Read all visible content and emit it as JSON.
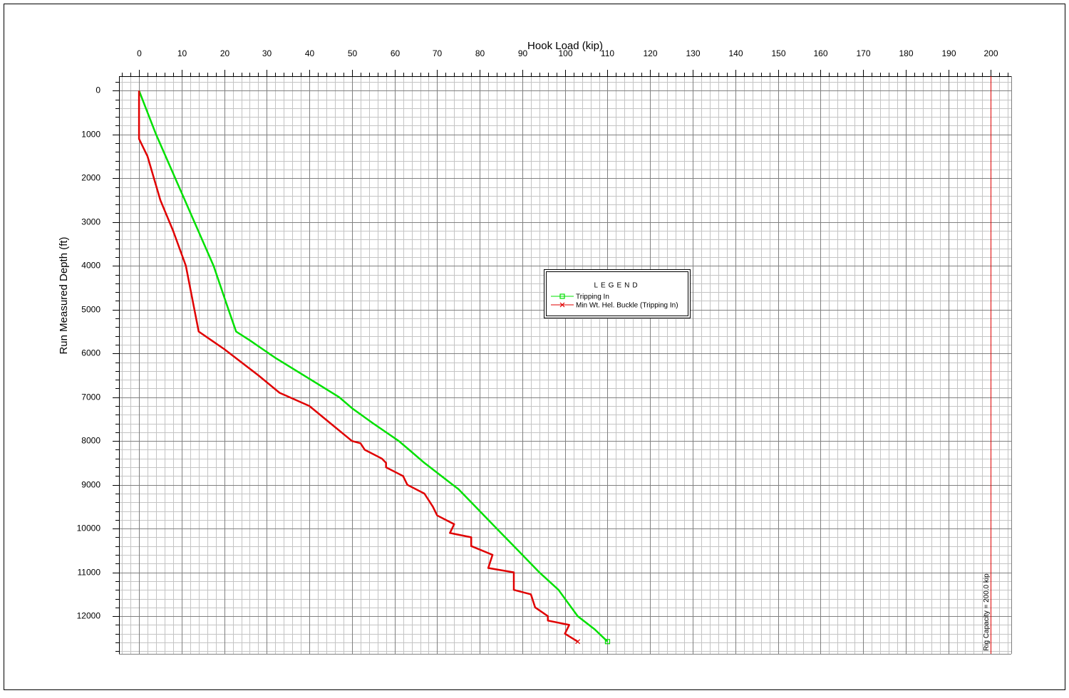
{
  "chart_data": {
    "type": "line",
    "x_label": "Hook Load (kip)",
    "y_label": "Run Measured Depth (ft)",
    "legend_title": "LEGEND",
    "xlim": [
      -4.7,
      204.8
    ],
    "xticks": [
      0,
      10,
      20,
      30,
      40,
      50,
      60,
      70,
      80,
      90,
      100,
      110,
      120,
      130,
      140,
      150,
      160,
      170,
      180,
      190,
      200
    ],
    "ylim": [
      -330,
      12860
    ],
    "yticks": [
      0,
      1000,
      2000,
      3000,
      4000,
      5000,
      6000,
      7000,
      8000,
      9000,
      10000,
      11000,
      12000
    ],
    "grid": true,
    "minor_per_major": 5,
    "y_inverted": true,
    "series": [
      {
        "name": "Tripping In",
        "color": "#00e000",
        "marker": "square",
        "x": [
          0,
          4,
          8.5,
          13,
          17.5,
          21,
          22.8,
          26,
          29,
          32,
          37,
          42,
          47,
          50,
          55,
          58,
          61,
          64,
          67,
          71,
          75,
          79,
          84,
          89,
          94,
          98.5,
          103,
          107,
          110
        ],
        "y": [
          0,
          1000,
          2000,
          3000,
          4000,
          5000,
          5500,
          5700,
          5900,
          6100,
          6400,
          6700,
          7000,
          7250,
          7600,
          7800,
          8000,
          8250,
          8500,
          8800,
          9100,
          9500,
          10000,
          10500,
          11000,
          11400,
          12000,
          12300,
          12580
        ]
      },
      {
        "name": "Min Wt. Hel. Buckle (Tripping In)",
        "color": "#e00000",
        "marker": "x",
        "x": [
          0,
          0,
          2,
          3.5,
          5,
          8,
          11,
          12,
          14,
          17,
          20,
          24,
          28,
          33,
          40,
          45,
          50,
          52,
          53,
          57,
          58,
          58,
          61,
          62,
          63,
          67,
          69,
          70,
          74,
          73,
          78,
          78,
          83,
          82,
          88,
          88,
          92,
          93,
          96,
          96,
          101,
          100,
          103
        ],
        "y": [
          0,
          1100,
          1500,
          2000,
          2500,
          3200,
          4000,
          4500,
          5500,
          5700,
          5900,
          6200,
          6500,
          6900,
          7200,
          7600,
          8000,
          8050,
          8200,
          8400,
          8500,
          8600,
          8750,
          8800,
          9000,
          9200,
          9500,
          9700,
          9900,
          10100,
          10200,
          10400,
          10600,
          10900,
          11000,
          11400,
          11500,
          11800,
          12000,
          12100,
          12200,
          12400,
          12580
        ]
      }
    ],
    "rig_capacity": {
      "value": 200,
      "label": "Rig Capacity = 200.0 kip",
      "color": "#e00000"
    }
  }
}
